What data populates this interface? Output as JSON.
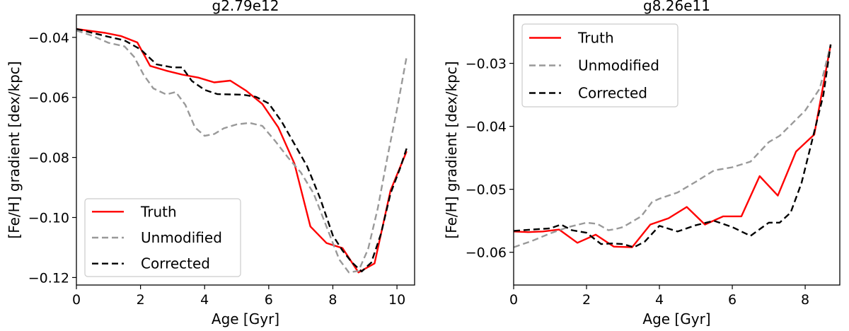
{
  "chart_data": [
    {
      "type": "line",
      "title": "g2.79e12",
      "xlabel": "Age [Gyr]",
      "ylabel": "[Fe/H] gradient [dex/kpc]",
      "xlim": [
        0,
        10.55
      ],
      "ylim": [
        -0.1225,
        -0.0325
      ],
      "xticks": [
        0,
        2,
        4,
        6,
        8,
        10
      ],
      "xtick_labels": [
        "0",
        "2",
        "4",
        "6",
        "8",
        "10"
      ],
      "yticks": [
        -0.12,
        -0.1,
        -0.08,
        -0.06,
        -0.04
      ],
      "ytick_labels": [
        "−0.12",
        "−0.10",
        "−0.08",
        "−0.06",
        "−0.04"
      ],
      "legend_position": "lower-left",
      "series": [
        {
          "name": "Truth",
          "color": "#ff0000",
          "style": "solid",
          "x": [
            0,
            0.4,
            0.9,
            1.4,
            1.9,
            2.3,
            2.8,
            3.3,
            3.8,
            4.3,
            4.8,
            5.3,
            5.8,
            6.3,
            6.8,
            7.3,
            7.8,
            8.3,
            8.8,
            9.3,
            9.8,
            10.3
          ],
          "y": [
            -0.0372,
            -0.0378,
            -0.0385,
            -0.0396,
            -0.0417,
            -0.0495,
            -0.0511,
            -0.0524,
            -0.0534,
            -0.055,
            -0.0544,
            -0.0578,
            -0.0622,
            -0.07,
            -0.082,
            -0.103,
            -0.1085,
            -0.1102,
            -0.1183,
            -0.1153,
            -0.091,
            -0.078
          ]
        },
        {
          "name": "Unmodified",
          "color": "#999999",
          "style": "dashed",
          "x": [
            0,
            0.5,
            1.0,
            1.5,
            1.8,
            2.1,
            2.4,
            2.8,
            3.1,
            3.4,
            3.7,
            4.0,
            4.3,
            4.6,
            5.0,
            5.4,
            5.8,
            6.2,
            6.6,
            7.0,
            7.4,
            7.8,
            8.2,
            8.5,
            8.8,
            9.1,
            9.4,
            9.7,
            10.0,
            10.3
          ],
          "y": [
            -0.0377,
            -0.0395,
            -0.0418,
            -0.043,
            -0.0465,
            -0.0525,
            -0.057,
            -0.059,
            -0.0582,
            -0.0625,
            -0.07,
            -0.0728,
            -0.0722,
            -0.0703,
            -0.069,
            -0.0685,
            -0.0695,
            -0.0745,
            -0.08,
            -0.085,
            -0.092,
            -0.103,
            -0.114,
            -0.1183,
            -0.1178,
            -0.1105,
            -0.097,
            -0.08,
            -0.064,
            -0.0465
          ]
        },
        {
          "name": "Corrected",
          "color": "#000000",
          "style": "dashed",
          "x": [
            0,
            0.5,
            1.0,
            1.5,
            2.0,
            2.5,
            3.0,
            3.3,
            3.6,
            4.0,
            4.4,
            4.8,
            5.2,
            5.6,
            6.0,
            6.4,
            6.8,
            7.2,
            7.6,
            8.0,
            8.3,
            8.6,
            8.9,
            9.2,
            9.5,
            9.8,
            10.1,
            10.3
          ],
          "y": [
            -0.0372,
            -0.0385,
            -0.0398,
            -0.041,
            -0.044,
            -0.049,
            -0.05,
            -0.05,
            -0.0545,
            -0.0575,
            -0.0589,
            -0.059,
            -0.0591,
            -0.0598,
            -0.062,
            -0.068,
            -0.0755,
            -0.083,
            -0.0935,
            -0.106,
            -0.111,
            -0.115,
            -0.118,
            -0.115,
            -0.1055,
            -0.092,
            -0.0835,
            -0.077
          ]
        }
      ]
    },
    {
      "type": "line",
      "title": "g8.26e11",
      "xlabel": "Age [Gyr]",
      "ylabel": "[Fe/H] gradient [dex/kpc]",
      "xlim": [
        0,
        8.95
      ],
      "ylim": [
        -0.0652,
        -0.0223
      ],
      "xticks": [
        0,
        2,
        4,
        6,
        8
      ],
      "xtick_labels": [
        "0",
        "2",
        "4",
        "6",
        "8"
      ],
      "yticks": [
        -0.06,
        -0.05,
        -0.04,
        -0.03
      ],
      "ytick_labels": [
        "−0.06",
        "−0.05",
        "−0.04",
        "−0.03"
      ],
      "legend_position": "top-left",
      "series": [
        {
          "name": "Truth",
          "color": "#ff0000",
          "style": "solid",
          "x": [
            0,
            0.4,
            0.8,
            1.25,
            1.75,
            2.25,
            2.75,
            3.25,
            3.75,
            4.25,
            4.75,
            5.25,
            5.75,
            6.25,
            6.75,
            7.25,
            7.75,
            8.25,
            8.7
          ],
          "y": [
            -0.0567,
            -0.0568,
            -0.0567,
            -0.0564,
            -0.0585,
            -0.0572,
            -0.0591,
            -0.0592,
            -0.0556,
            -0.0546,
            -0.0528,
            -0.0556,
            -0.0543,
            -0.0543,
            -0.0479,
            -0.051,
            -0.044,
            -0.0413,
            -0.027
          ]
        },
        {
          "name": "Unmodified",
          "color": "#999999",
          "style": "dashed",
          "x": [
            0,
            0.5,
            1.0,
            1.5,
            2.0,
            2.3,
            2.6,
            2.8,
            3.0,
            3.5,
            3.8,
            4.0,
            4.5,
            5.0,
            5.5,
            6.0,
            6.5,
            7.0,
            7.3,
            7.6,
            8.0,
            8.4,
            8.7
          ],
          "y": [
            -0.0592,
            -0.0582,
            -0.057,
            -0.056,
            -0.0553,
            -0.0555,
            -0.0565,
            -0.0563,
            -0.056,
            -0.0543,
            -0.052,
            -0.0515,
            -0.0505,
            -0.0488,
            -0.047,
            -0.0465,
            -0.0456,
            -0.0425,
            -0.0415,
            -0.0398,
            -0.0375,
            -0.034,
            -0.027
          ]
        },
        {
          "name": "Corrected",
          "color": "#000000",
          "style": "dashed",
          "x": [
            0,
            0.5,
            1.0,
            1.3,
            1.6,
            2.0,
            2.4,
            2.7,
            3.0,
            3.3,
            3.6,
            4.0,
            4.5,
            5.0,
            5.5,
            6.0,
            6.5,
            7.0,
            7.3,
            7.6,
            7.9,
            8.2,
            8.5,
            8.7
          ],
          "y": [
            -0.0566,
            -0.0564,
            -0.0562,
            -0.0556,
            -0.0565,
            -0.0569,
            -0.0587,
            -0.0586,
            -0.0587,
            -0.0592,
            -0.0583,
            -0.0558,
            -0.0567,
            -0.0557,
            -0.055,
            -0.056,
            -0.0574,
            -0.0553,
            -0.0553,
            -0.0537,
            -0.049,
            -0.042,
            -0.035,
            -0.027
          ]
        }
      ]
    }
  ]
}
